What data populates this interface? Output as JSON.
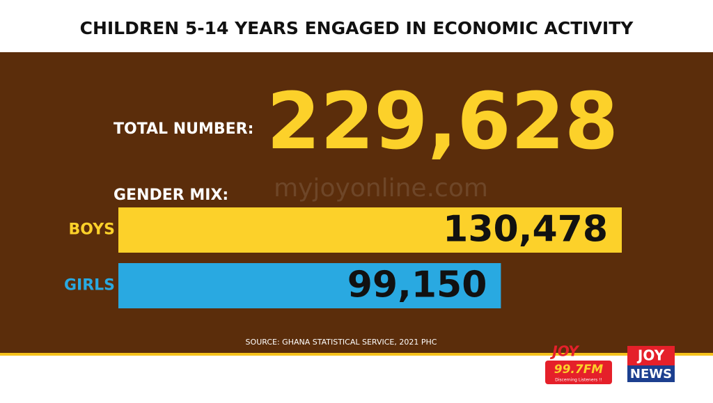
{
  "chart_data": {
    "type": "hbar",
    "title": "CHILDREN 5-14 YEARS ENGAGED IN ECONOMIC ACTIVITY",
    "total_caption": "TOTAL NUMBER:",
    "total": "229,628",
    "subtitle": "GENDER MIX:",
    "categories": [
      "BOYS",
      "GIRLS"
    ],
    "values": [
      130478,
      99150
    ],
    "value_labels": [
      "130,478",
      "99,150"
    ],
    "colors": [
      "#fcd12a",
      "#29a9e1"
    ],
    "source": "SOURCE: GHANA STATISTICAL SERVICE, 2021 PHC"
  },
  "watermark": "myjoyonline.com",
  "logos": {
    "fm": {
      "brand": "JOY",
      "frequency": "99.7FM",
      "tagline": "Discerning Listeners !!"
    },
    "news": {
      "brand": "JOY",
      "name": "NEWS"
    }
  }
}
